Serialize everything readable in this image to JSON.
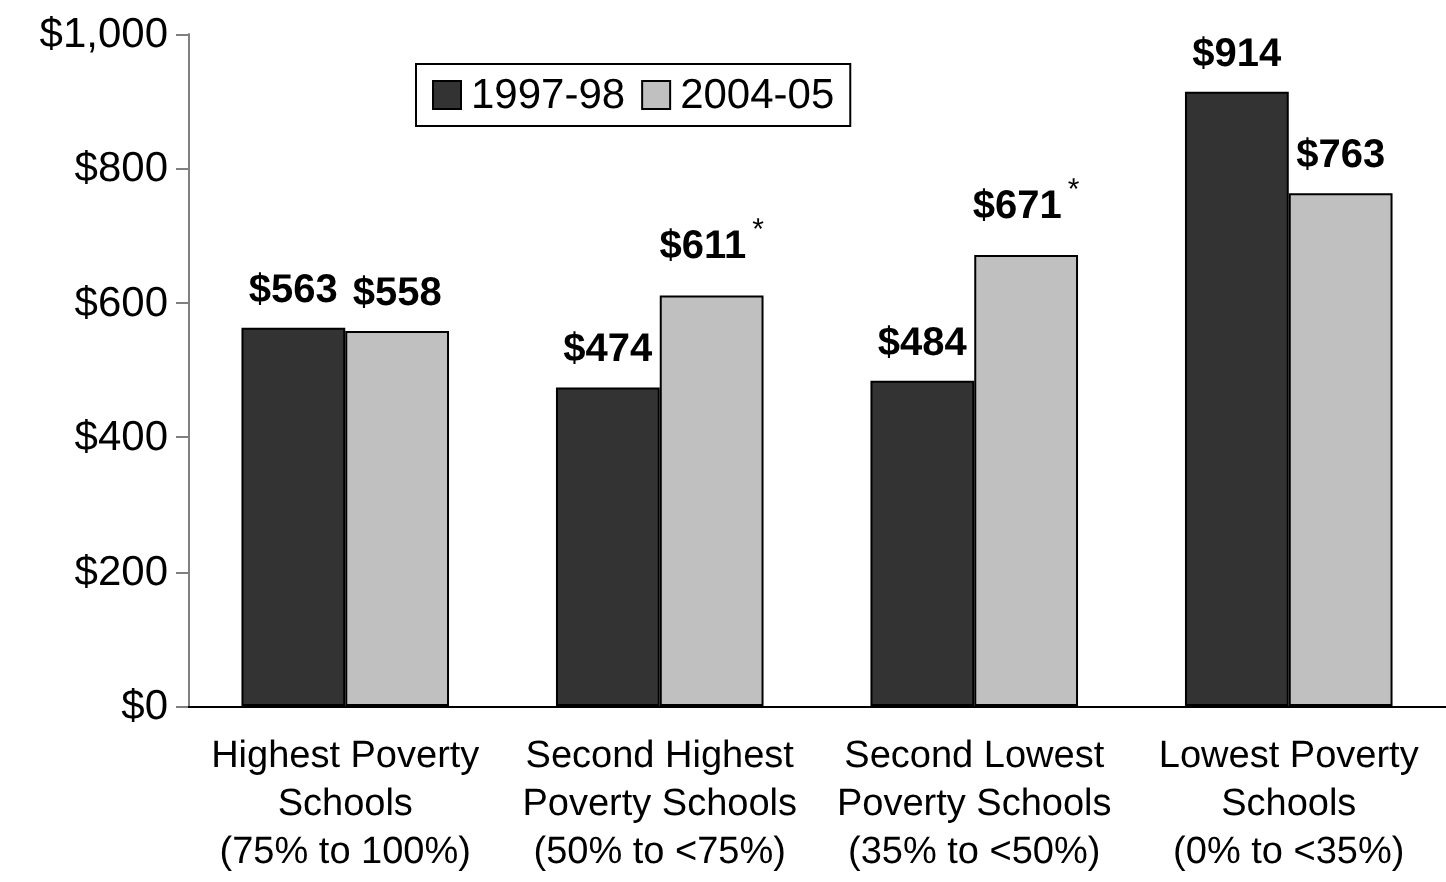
{
  "chart_data": {
    "type": "bar",
    "categories": [
      "Highest Poverty\nSchools\n(75% to 100%)",
      "Second Highest\nPoverty Schools\n(50% to <75%)",
      "Second Lowest\nPoverty Schools\n(35% to <50%)",
      "Lowest Poverty\nSchools\n(0% to <35%)"
    ],
    "series": [
      {
        "name": "1997-98",
        "color": "#333333",
        "values": [
          563,
          474,
          484,
          914
        ],
        "value_labels": [
          "$563",
          "$474",
          "$484",
          "$914"
        ]
      },
      {
        "name": "2004-05",
        "color": "#c0c0c0",
        "values": [
          558,
          611,
          671,
          763
        ],
        "value_labels": [
          "$558",
          "$611$^{*}$",
          "$671$^{*}$",
          "$763"
        ]
      }
    ],
    "ylim": [
      0,
      1000
    ],
    "yticks": [
      {
        "value": 0,
        "label": "$0"
      },
      {
        "value": 200,
        "label": "$200"
      },
      {
        "value": 400,
        "label": "$400"
      },
      {
        "value": 600,
        "label": "$600"
      },
      {
        "value": 800,
        "label": "$800"
      },
      {
        "value": 1000,
        "label": "$1,000"
      }
    ],
    "grid": false,
    "legend": "top left"
  }
}
